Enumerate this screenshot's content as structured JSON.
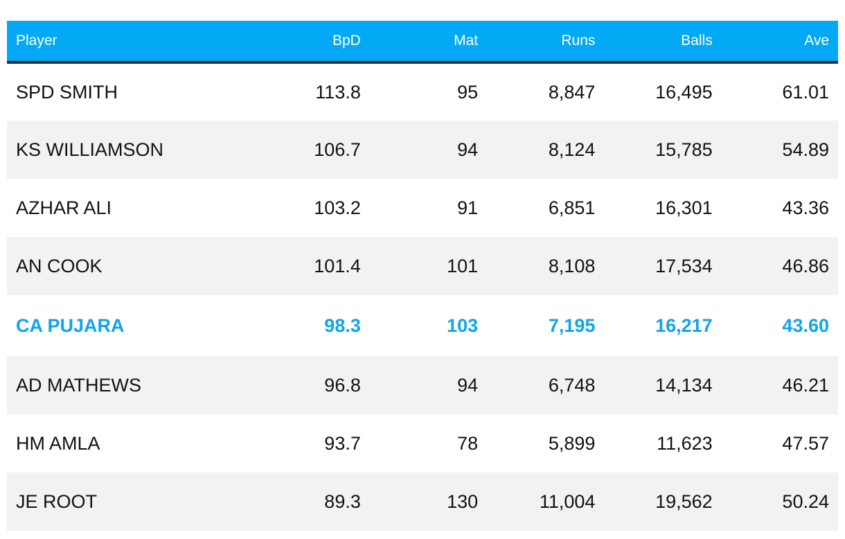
{
  "colors": {
    "header_background": "#03a9f4",
    "header_text": "#ffffff",
    "header_rule": "#1f2a30",
    "stripe": "#f2f2f2",
    "highlight_text": "#0ea5e9"
  },
  "table": {
    "headers": [
      "Player",
      "BpD",
      "Mat",
      "Runs",
      "Balls",
      "Ave"
    ],
    "highlighted_row": 4,
    "rows": [
      [
        "SPD SMITH",
        "113.8",
        "95",
        "8,847",
        "16,495",
        "61.01"
      ],
      [
        "KS WILLIAMSON",
        "106.7",
        "94",
        "8,124",
        "15,785",
        "54.89"
      ],
      [
        "AZHAR ALI",
        "103.2",
        "91",
        "6,851",
        "16,301",
        "43.36"
      ],
      [
        "AN COOK",
        "101.4",
        "101",
        "8,108",
        "17,534",
        "46.86"
      ],
      [
        "CA PUJARA",
        "98.3",
        "103",
        "7,195",
        "16,217",
        "43.60"
      ],
      [
        "AD MATHEWS",
        "96.8",
        "94",
        "6,748",
        "14,134",
        "46.21"
      ],
      [
        "HM AMLA",
        "93.7",
        "78",
        "5,899",
        "11,623",
        "47.57"
      ],
      [
        "JE ROOT",
        "89.3",
        "130",
        "11,004",
        "19,562",
        "50.24"
      ]
    ]
  }
}
